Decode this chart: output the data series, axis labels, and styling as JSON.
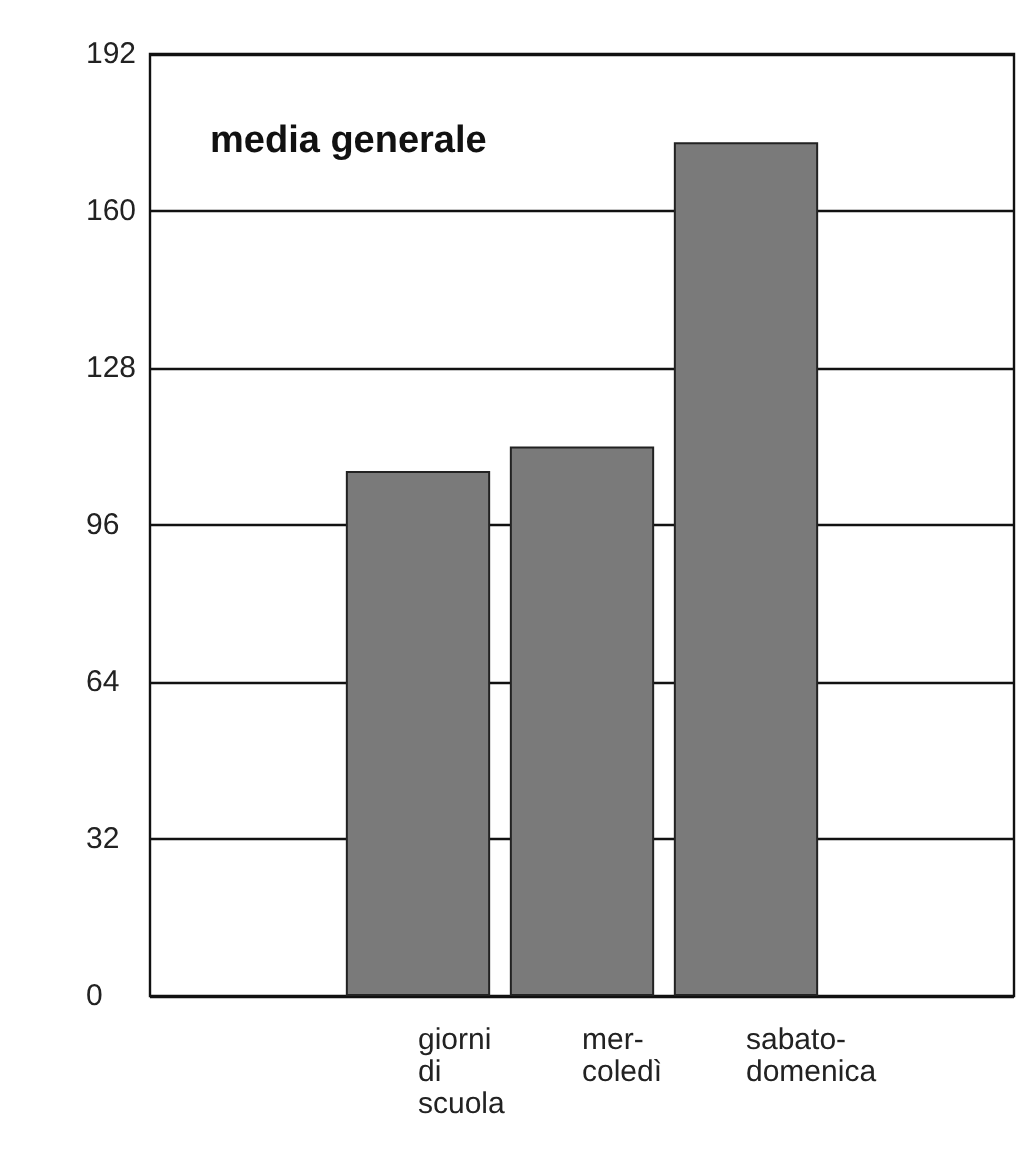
{
  "chart_data": {
    "type": "bar",
    "title": "media generale",
    "categories": [
      "giorni\ndi\nscuola",
      "mer-\ncoledì",
      "sabato-\ndomenica"
    ],
    "values": [
      107,
      112,
      174
    ],
    "color": "#7a7a7a",
    "ylim": [
      0,
      192
    ],
    "yticks": [
      0,
      32,
      64,
      96,
      128,
      160,
      192
    ],
    "grid": "y"
  }
}
